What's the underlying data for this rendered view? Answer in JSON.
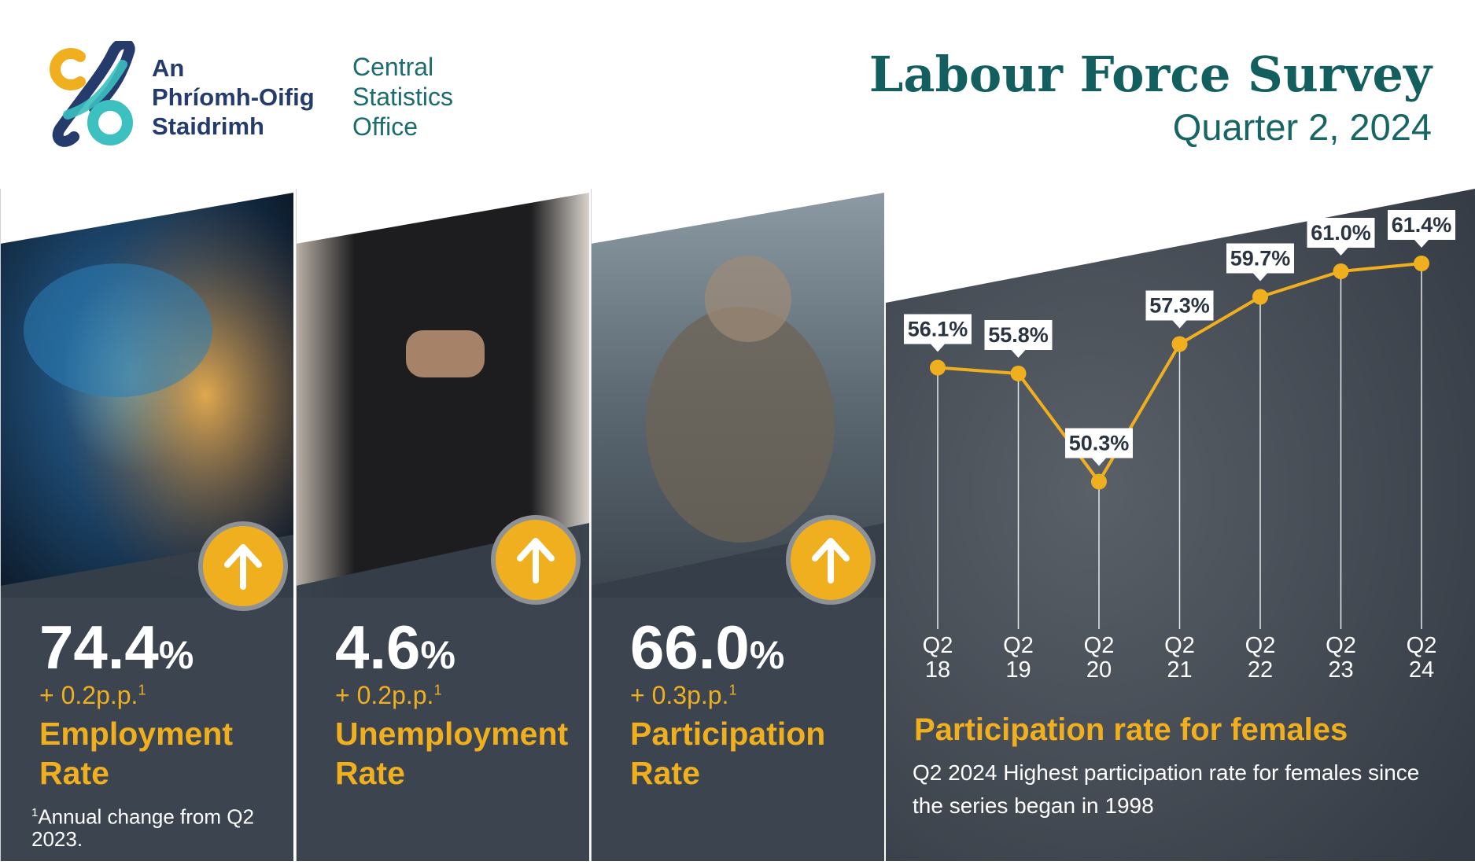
{
  "header": {
    "logo_irish": [
      "An",
      "Phríomh-Oifig",
      "Staidrimh"
    ],
    "logo_english": [
      "Central",
      "Statistics",
      "Office"
    ],
    "title": "Labour Force Survey",
    "subtitle": "Quarter 2, 2024"
  },
  "colors": {
    "accent": "#F0AF1E",
    "panel_dark": "#363F49",
    "title_teal": "#135E5E",
    "logo_navy": "#243B6B",
    "logo_teal": "#3CC0C0"
  },
  "metrics": [
    {
      "value": "74.4",
      "unit": "%",
      "change": "+ 0.2p.p.",
      "footnote_ref": "1",
      "label": [
        "Employment",
        "Rate"
      ],
      "direction": "up",
      "icon": "arrow-up-icon"
    },
    {
      "value": "4.6",
      "unit": "%",
      "change": "+ 0.2p.p.",
      "footnote_ref": "1",
      "label": [
        "Unemployment",
        "Rate"
      ],
      "direction": "up",
      "icon": "arrow-up-icon"
    },
    {
      "value": "66.0",
      "unit": "%",
      "change": "+ 0.3p.p.",
      "footnote_ref": "1",
      "label": [
        "Participation",
        "Rate"
      ],
      "direction": "up",
      "icon": "arrow-up-icon"
    }
  ],
  "footnote": {
    "ref": "1",
    "text": "Annual change from Q2 2023."
  },
  "chart_data": {
    "type": "line",
    "title": "Participation rate for females",
    "description": "Q2 2024 Highest participation rate for females since the series began in 1998",
    "categories": [
      [
        "Q2",
        "18"
      ],
      [
        "Q2",
        "19"
      ],
      [
        "Q2",
        "20"
      ],
      [
        "Q2",
        "21"
      ],
      [
        "Q2",
        "22"
      ],
      [
        "Q2",
        "23"
      ],
      [
        "Q2",
        "24"
      ]
    ],
    "values": [
      56.1,
      55.8,
      50.3,
      57.3,
      59.7,
      61.0,
      61.4
    ],
    "data_labels": [
      "56.1%",
      "55.8%",
      "50.3%",
      "57.3%",
      "59.7%",
      "61.0%",
      "61.4%"
    ],
    "ylim": [
      48,
      66
    ],
    "grid": false,
    "line_color": "#F0AF1E"
  }
}
